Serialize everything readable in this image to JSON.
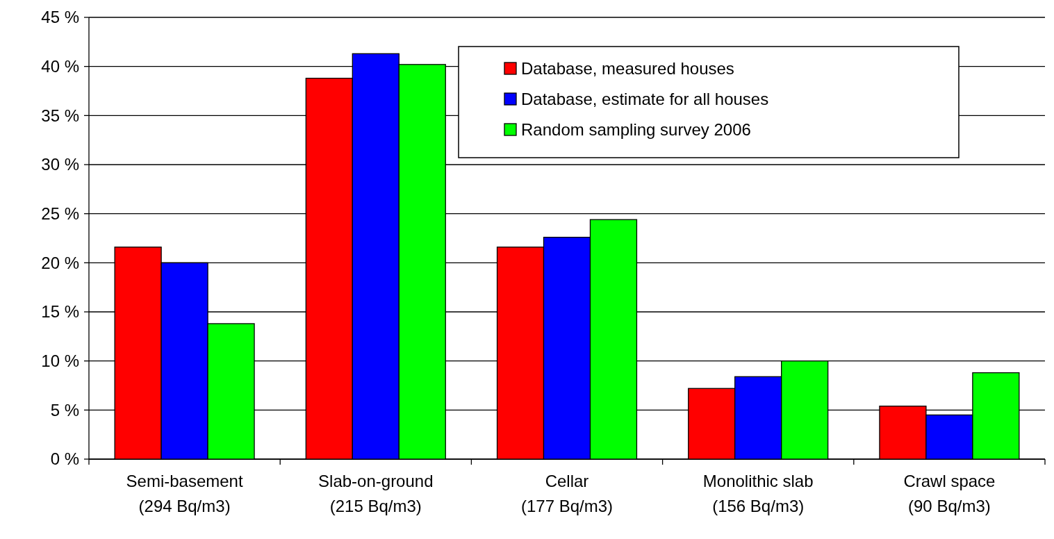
{
  "chart_data": {
    "type": "bar",
    "categories": [
      "Semi-basement\n(294 Bq/m3)",
      "Slab-on-ground\n(215 Bq/m3)",
      "Cellar\n(177 Bq/m3)",
      "Monolithic slab\n(156 Bq/m3)",
      "Crawl space\n(90 Bq/m3)"
    ],
    "series": [
      {
        "name": "Database, measured houses",
        "color": "#ff0000",
        "values": [
          21.6,
          38.8,
          21.6,
          7.2,
          5.4
        ]
      },
      {
        "name": "Database, estimate for all houses",
        "color": "#0000ff",
        "values": [
          20.0,
          41.3,
          22.6,
          8.4,
          4.5
        ]
      },
      {
        "name": "Random sampling survey 2006",
        "color": "#00ff00",
        "values": [
          13.8,
          40.2,
          24.4,
          10.0,
          8.8
        ]
      }
    ],
    "ylim": [
      0,
      45
    ],
    "yticks": [
      {
        "value": 0,
        "label": "0 %"
      },
      {
        "value": 5,
        "label": "5 %"
      },
      {
        "value": 10,
        "label": "10 %"
      },
      {
        "value": 15,
        "label": "15 %"
      },
      {
        "value": 20,
        "label": "20 %"
      },
      {
        "value": 25,
        "label": "25 %"
      },
      {
        "value": 30,
        "label": "30 %"
      },
      {
        "value": 35,
        "label": "35 %"
      },
      {
        "value": 40,
        "label": "40 %"
      },
      {
        "value": 45,
        "label": "45 %"
      }
    ],
    "grid": "y",
    "legend": "top right"
  }
}
